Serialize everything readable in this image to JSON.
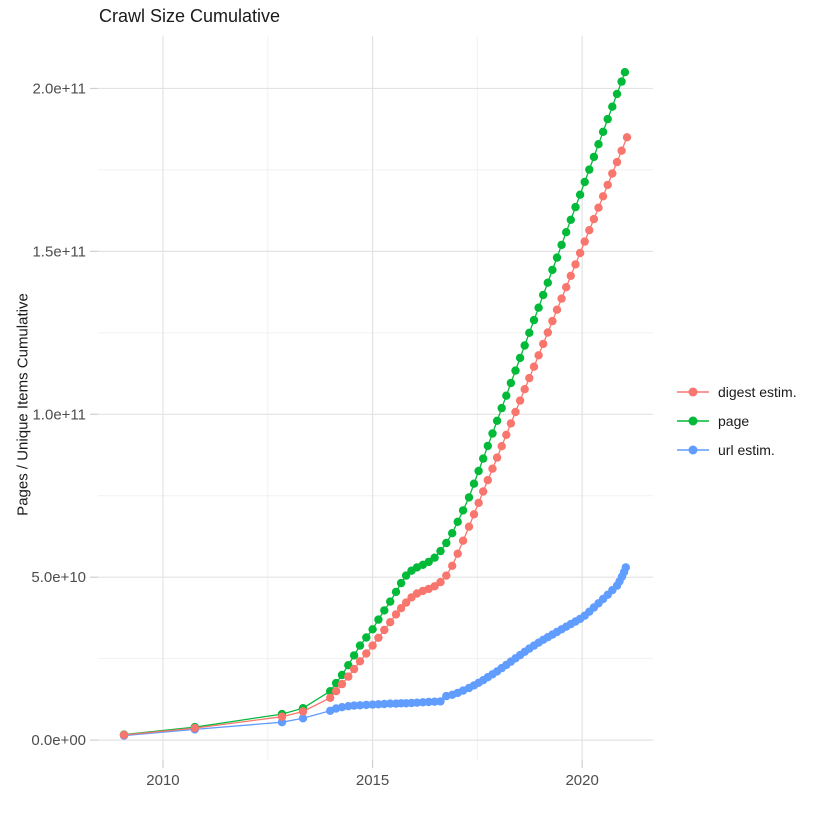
{
  "chart_data": {
    "type": "scatter",
    "title": "Crawl Size Cumulative",
    "xlabel": "",
    "ylabel": "Pages / Unique Items Cumulative",
    "legend_position": "right",
    "grid": true,
    "x_unit": "year",
    "y_scale_factor": 10000000000.0,
    "xlim": [
      2008.45,
      2021.69
    ],
    "ylim": [
      -6100000000.0,
      216100000000.0
    ],
    "x_ticks": {
      "values": [
        2010,
        2015,
        2020
      ],
      "labels": [
        "2010",
        "2015",
        "2020"
      ]
    },
    "y_ticks": {
      "values": [
        0,
        50000000000.0,
        100000000000.0,
        150000000000.0,
        200000000000.0
      ],
      "labels": [
        "0.0e+00",
        "5.0e+10",
        "1.0e+11",
        "1.5e+11",
        "2.0e+11"
      ]
    },
    "x_minor_gridlines": [
      2012.5,
      2017.5
    ],
    "y_minor_gridlines": [
      25000000000.0,
      75000000000.0,
      125000000000.0,
      175000000000.0
    ],
    "colors": {
      "background": "#ffffff",
      "grid_major": "#e3e3e3",
      "grid_minor": "#f1f1f1",
      "tick_mark": "#cfcfcf",
      "axis_text": "#4d4d4d",
      "text": "#1a1a1a"
    },
    "series": [
      {
        "name": "digest estim.",
        "color": "#F8766D",
        "points": [
          [
            2009.07,
            0.16
          ],
          [
            2010.76,
            0.37
          ],
          [
            2012.84,
            0.72
          ],
          [
            2013.34,
            0.88
          ],
          [
            2013.99,
            1.3
          ],
          [
            2014.13,
            1.5
          ],
          [
            2014.27,
            1.72
          ],
          [
            2014.42,
            1.95
          ],
          [
            2014.56,
            2.18
          ],
          [
            2014.7,
            2.42
          ],
          [
            2014.85,
            2.66
          ],
          [
            2015.0,
            2.9
          ],
          [
            2015.14,
            3.14
          ],
          [
            2015.28,
            3.38
          ],
          [
            2015.42,
            3.62
          ],
          [
            2015.56,
            3.86
          ],
          [
            2015.68,
            4.05
          ],
          [
            2015.8,
            4.22
          ],
          [
            2015.93,
            4.38
          ],
          [
            2016.06,
            4.5
          ],
          [
            2016.2,
            4.58
          ],
          [
            2016.34,
            4.64
          ],
          [
            2016.48,
            4.72
          ],
          [
            2016.62,
            4.85
          ],
          [
            2016.76,
            5.05
          ],
          [
            2016.9,
            5.35
          ],
          [
            2017.03,
            5.72
          ],
          [
            2017.16,
            6.12
          ],
          [
            2017.3,
            6.55
          ],
          [
            2017.42,
            6.93
          ],
          [
            2017.53,
            7.28
          ],
          [
            2017.64,
            7.63
          ],
          [
            2017.75,
            7.98
          ],
          [
            2017.86,
            8.33
          ],
          [
            2017.97,
            8.67
          ],
          [
            2018.08,
            9.02
          ],
          [
            2018.19,
            9.37
          ],
          [
            2018.3,
            9.72
          ],
          [
            2018.41,
            10.07
          ],
          [
            2018.52,
            10.42
          ],
          [
            2018.63,
            10.77
          ],
          [
            2018.74,
            11.11
          ],
          [
            2018.85,
            11.46
          ],
          [
            2018.96,
            11.81
          ],
          [
            2019.07,
            12.16
          ],
          [
            2019.18,
            12.51
          ],
          [
            2019.29,
            12.86
          ],
          [
            2019.4,
            13.21
          ],
          [
            2019.51,
            13.55
          ],
          [
            2019.62,
            13.9
          ],
          [
            2019.73,
            14.25
          ],
          [
            2019.84,
            14.6
          ],
          [
            2019.95,
            14.95
          ],
          [
            2020.06,
            15.3
          ],
          [
            2020.17,
            15.65
          ],
          [
            2020.28,
            15.99
          ],
          [
            2020.39,
            16.34
          ],
          [
            2020.5,
            16.69
          ],
          [
            2020.61,
            17.04
          ],
          [
            2020.72,
            17.39
          ],
          [
            2020.83,
            17.74
          ],
          [
            2020.94,
            18.09
          ],
          [
            2021.07,
            18.5
          ]
        ]
      },
      {
        "name": "page",
        "color": "#00BA38",
        "points": [
          [
            2009.07,
            0.17
          ],
          [
            2010.76,
            0.4
          ],
          [
            2012.84,
            0.8
          ],
          [
            2013.34,
            0.98
          ],
          [
            2013.99,
            1.5
          ],
          [
            2014.13,
            1.75
          ],
          [
            2014.27,
            2.0
          ],
          [
            2014.42,
            2.3
          ],
          [
            2014.56,
            2.6
          ],
          [
            2014.7,
            2.9
          ],
          [
            2014.85,
            3.15
          ],
          [
            2015.0,
            3.4
          ],
          [
            2015.14,
            3.7
          ],
          [
            2015.28,
            3.98
          ],
          [
            2015.42,
            4.25
          ],
          [
            2015.56,
            4.55
          ],
          [
            2015.68,
            4.82
          ],
          [
            2015.8,
            5.05
          ],
          [
            2015.93,
            5.2
          ],
          [
            2016.06,
            5.3
          ],
          [
            2016.2,
            5.38
          ],
          [
            2016.34,
            5.47
          ],
          [
            2016.48,
            5.6
          ],
          [
            2016.62,
            5.8
          ],
          [
            2016.76,
            6.05
          ],
          [
            2016.9,
            6.35
          ],
          [
            2017.03,
            6.7
          ],
          [
            2017.16,
            7.05
          ],
          [
            2017.3,
            7.45
          ],
          [
            2017.42,
            7.87
          ],
          [
            2017.53,
            8.26
          ],
          [
            2017.64,
            8.64
          ],
          [
            2017.75,
            9.03
          ],
          [
            2017.86,
            9.41
          ],
          [
            2017.97,
            9.8
          ],
          [
            2018.08,
            10.19
          ],
          [
            2018.19,
            10.57
          ],
          [
            2018.3,
            10.96
          ],
          [
            2018.41,
            11.34
          ],
          [
            2018.52,
            11.73
          ],
          [
            2018.63,
            12.11
          ],
          [
            2018.74,
            12.5
          ],
          [
            2018.85,
            12.89
          ],
          [
            2018.96,
            13.27
          ],
          [
            2019.07,
            13.66
          ],
          [
            2019.18,
            14.04
          ],
          [
            2019.29,
            14.43
          ],
          [
            2019.4,
            14.81
          ],
          [
            2019.51,
            15.2
          ],
          [
            2019.62,
            15.59
          ],
          [
            2019.73,
            15.97
          ],
          [
            2019.84,
            16.36
          ],
          [
            2019.95,
            16.74
          ],
          [
            2020.06,
            17.13
          ],
          [
            2020.17,
            17.51
          ],
          [
            2020.28,
            17.9
          ],
          [
            2020.39,
            18.29
          ],
          [
            2020.5,
            18.67
          ],
          [
            2020.61,
            19.06
          ],
          [
            2020.72,
            19.44
          ],
          [
            2020.83,
            19.83
          ],
          [
            2020.94,
            20.21
          ],
          [
            2021.02,
            20.5
          ]
        ]
      },
      {
        "name": "url estim.",
        "color": "#619CFF",
        "points": [
          [
            2009.07,
            0.14
          ],
          [
            2010.76,
            0.33
          ],
          [
            2012.84,
            0.55
          ],
          [
            2013.34,
            0.67
          ],
          [
            2013.99,
            0.9
          ],
          [
            2014.13,
            0.97
          ],
          [
            2014.27,
            1.01
          ],
          [
            2014.42,
            1.04
          ],
          [
            2014.56,
            1.06
          ],
          [
            2014.7,
            1.07
          ],
          [
            2014.85,
            1.08
          ],
          [
            2015.0,
            1.09
          ],
          [
            2015.14,
            1.1
          ],
          [
            2015.28,
            1.11
          ],
          [
            2015.42,
            1.12
          ],
          [
            2015.56,
            1.12
          ],
          [
            2015.68,
            1.13
          ],
          [
            2015.8,
            1.13
          ],
          [
            2015.93,
            1.14
          ],
          [
            2016.06,
            1.15
          ],
          [
            2016.2,
            1.16
          ],
          [
            2016.34,
            1.17
          ],
          [
            2016.48,
            1.18
          ],
          [
            2016.62,
            1.19
          ],
          [
            2016.76,
            1.35
          ],
          [
            2016.9,
            1.39
          ],
          [
            2017.03,
            1.45
          ],
          [
            2017.16,
            1.52
          ],
          [
            2017.3,
            1.6
          ],
          [
            2017.42,
            1.68
          ],
          [
            2017.53,
            1.76
          ],
          [
            2017.64,
            1.84
          ],
          [
            2017.75,
            1.93
          ],
          [
            2017.86,
            2.02
          ],
          [
            2017.97,
            2.11
          ],
          [
            2018.08,
            2.21
          ],
          [
            2018.19,
            2.31
          ],
          [
            2018.3,
            2.41
          ],
          [
            2018.41,
            2.51
          ],
          [
            2018.52,
            2.61
          ],
          [
            2018.63,
            2.71
          ],
          [
            2018.74,
            2.81
          ],
          [
            2018.85,
            2.9
          ],
          [
            2018.96,
            2.99
          ],
          [
            2019.07,
            3.08
          ],
          [
            2019.18,
            3.16
          ],
          [
            2019.29,
            3.24
          ],
          [
            2019.4,
            3.32
          ],
          [
            2019.51,
            3.4
          ],
          [
            2019.62,
            3.48
          ],
          [
            2019.73,
            3.56
          ],
          [
            2019.84,
            3.64
          ],
          [
            2019.95,
            3.72
          ],
          [
            2020.06,
            3.82
          ],
          [
            2020.17,
            3.94
          ],
          [
            2020.28,
            4.07
          ],
          [
            2020.39,
            4.2
          ],
          [
            2020.5,
            4.33
          ],
          [
            2020.61,
            4.46
          ],
          [
            2020.72,
            4.6
          ],
          [
            2020.83,
            4.74
          ],
          [
            2020.89,
            4.87
          ],
          [
            2020.95,
            5.02
          ],
          [
            2021.0,
            5.16
          ],
          [
            2021.04,
            5.3
          ]
        ]
      }
    ]
  }
}
